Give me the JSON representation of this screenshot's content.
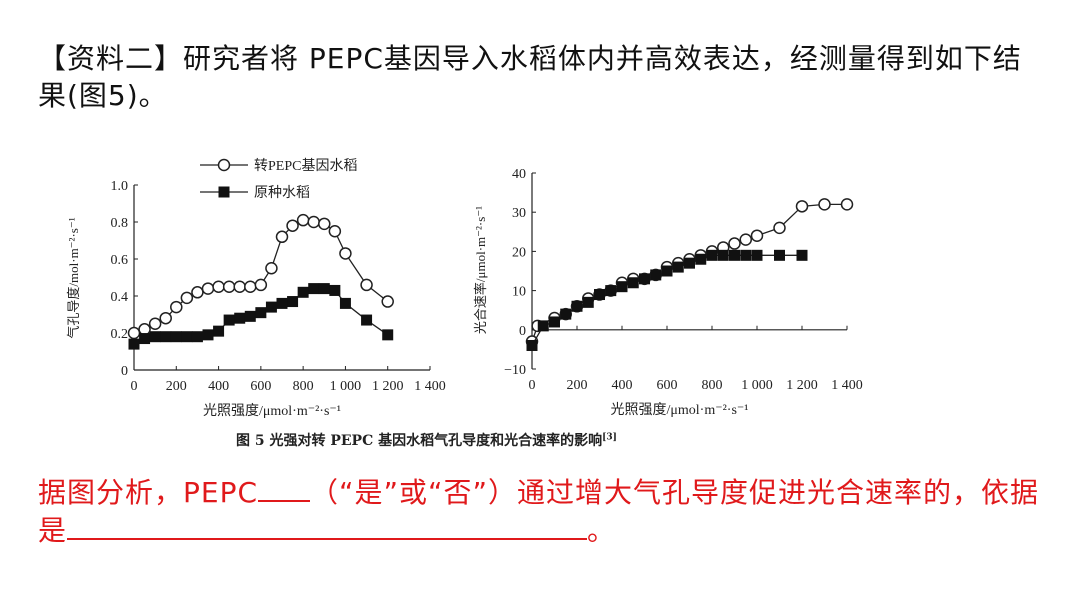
{
  "intro": {
    "bracket_label": "【资料二】",
    "text": "研究者将 PEPC基因导入水稻体内并高效表达，经测量得到如下结果(图5)。"
  },
  "figure": {
    "caption": "图 5   光强对转 PEPC 基因水稻气孔导度和光合速率的影响",
    "caption_ref": "[3]"
  },
  "question": {
    "part1": "据图分析，PEPC",
    "part2": "（“是”或“否”）通过增大气孔导度促进光合速率的，依据是",
    "part3": "。"
  },
  "chart_data": [
    {
      "type": "line",
      "ylabel": "气孔导度/mol·m⁻²·s⁻¹",
      "xlabel": "光照强度/μmol·m⁻²·s⁻¹",
      "xlim": [
        0,
        1400
      ],
      "ylim": [
        0,
        1.0
      ],
      "xticks": [
        0,
        200,
        400,
        600,
        800,
        1000,
        1200,
        1400
      ],
      "xtick_labels": [
        "0",
        "200",
        "400",
        "600",
        "800",
        "1 000",
        "1 200",
        "1 400"
      ],
      "yticks": [
        0,
        0.2,
        0.4,
        0.6,
        0.8,
        1.0
      ],
      "ytick_labels": [
        "0",
        "0.2",
        "0.4",
        "0.6",
        "0.8",
        "1.0"
      ],
      "legend": [
        "转PEPC基因水稻",
        "原种水稻"
      ],
      "series": [
        {
          "name": "转PEPC基因水稻",
          "marker": "circle-open",
          "x": [
            0,
            50,
            100,
            150,
            200,
            250,
            300,
            350,
            400,
            450,
            500,
            550,
            600,
            650,
            700,
            750,
            800,
            850,
            900,
            950,
            1000,
            1100,
            1200
          ],
          "y": [
            0.2,
            0.22,
            0.25,
            0.28,
            0.34,
            0.39,
            0.42,
            0.44,
            0.45,
            0.45,
            0.45,
            0.45,
            0.46,
            0.55,
            0.72,
            0.78,
            0.81,
            0.8,
            0.79,
            0.75,
            0.63,
            0.46,
            0.37
          ]
        },
        {
          "name": "原种水稻",
          "marker": "square-filled",
          "x": [
            0,
            50,
            100,
            150,
            200,
            250,
            300,
            350,
            400,
            450,
            500,
            550,
            600,
            650,
            700,
            750,
            800,
            850,
            900,
            950,
            1000,
            1100,
            1200
          ],
          "y": [
            0.14,
            0.17,
            0.18,
            0.18,
            0.18,
            0.18,
            0.18,
            0.19,
            0.21,
            0.27,
            0.28,
            0.29,
            0.31,
            0.34,
            0.36,
            0.37,
            0.42,
            0.44,
            0.44,
            0.43,
            0.36,
            0.27,
            0.19
          ]
        }
      ]
    },
    {
      "type": "line",
      "ylabel": "光合速率/μmol·m⁻²·s⁻¹",
      "xlabel": "光照强度/μmol·m⁻²·s⁻¹",
      "xlim": [
        0,
        1400
      ],
      "ylim": [
        -10,
        40
      ],
      "xticks": [
        0,
        200,
        400,
        600,
        800,
        1000,
        1200,
        1400
      ],
      "xtick_labels": [
        "0",
        "200",
        "400",
        "600",
        "800",
        "1 000",
        "1 200",
        "1 400"
      ],
      "yticks": [
        -10,
        0,
        10,
        20,
        30,
        40
      ],
      "ytick_labels": [
        "−10",
        "0",
        "10",
        "20",
        "30",
        "40"
      ],
      "series": [
        {
          "name": "转PEPC基因水稻",
          "marker": "circle-open",
          "x": [
            0,
            25,
            100,
            150,
            200,
            250,
            300,
            350,
            400,
            450,
            500,
            550,
            600,
            650,
            700,
            750,
            800,
            850,
            900,
            950,
            1000,
            1100,
            1200,
            1300,
            1400
          ],
          "y": [
            -3,
            1,
            3,
            4,
            6,
            8,
            9,
            10,
            12,
            13,
            13,
            14,
            16,
            17,
            18,
            19,
            20,
            21,
            22,
            23,
            24,
            26,
            31.5,
            32,
            32
          ]
        },
        {
          "name": "原种水稻",
          "marker": "square-filled",
          "x": [
            0,
            50,
            100,
            150,
            200,
            250,
            300,
            350,
            400,
            450,
            500,
            550,
            600,
            650,
            700,
            750,
            800,
            850,
            900,
            950,
            1000,
            1100,
            1200
          ],
          "y": [
            -4,
            1,
            2,
            4,
            6,
            7,
            9,
            10,
            11,
            12,
            13,
            14,
            15,
            16,
            17,
            18,
            19,
            19,
            19,
            19,
            19,
            19,
            19
          ]
        }
      ]
    }
  ]
}
